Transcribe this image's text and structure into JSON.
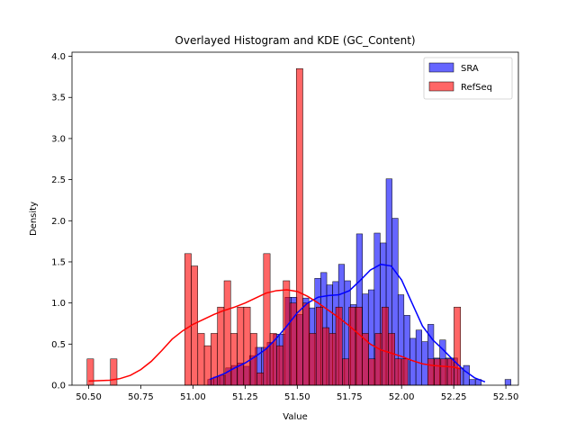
{
  "chart_data": {
    "type": "histogram",
    "title": "Overlayed Histogram and KDE (GC_Content)",
    "xlabel": "Value",
    "ylabel": "Density",
    "xlim": [
      50.42,
      52.56
    ],
    "ylim": [
      0,
      4.05
    ],
    "xticks": [
      "50.50",
      "50.75",
      "51.00",
      "51.25",
      "51.50",
      "51.75",
      "52.00",
      "52.25",
      "52.50"
    ],
    "yticks": [
      "0.0",
      "0.5",
      "1.0",
      "1.5",
      "2.0",
      "2.5",
      "3.0",
      "3.5",
      "4.0"
    ],
    "legend_position": "top-right",
    "grid": false,
    "series": [
      {
        "name": "SRA",
        "color": "#0000ff",
        "bin_width": 0.0285,
        "bins": [
          [
            51.085,
            0.07
          ],
          [
            51.114,
            0.1
          ],
          [
            51.142,
            0.12
          ],
          [
            51.171,
            0.21
          ],
          [
            51.199,
            0.24
          ],
          [
            51.228,
            0.27
          ],
          [
            51.256,
            0.23
          ],
          [
            51.285,
            0.36
          ],
          [
            51.313,
            0.46
          ],
          [
            51.342,
            0.46
          ],
          [
            51.37,
            0.52
          ],
          [
            51.399,
            0.62
          ],
          [
            51.427,
            0.62
          ],
          [
            51.456,
            1.07
          ],
          [
            51.484,
            1.07
          ],
          [
            51.513,
            0.86
          ],
          [
            51.541,
            1.06
          ],
          [
            51.57,
            0.94
          ],
          [
            51.598,
            1.3
          ],
          [
            51.627,
            1.37
          ],
          [
            51.655,
            1.22
          ],
          [
            51.684,
            1.26
          ],
          [
            51.712,
            1.47
          ],
          [
            51.741,
            1.27
          ],
          [
            51.769,
            0.98
          ],
          [
            51.798,
            1.84
          ],
          [
            51.826,
            1.11
          ],
          [
            51.855,
            1.16
          ],
          [
            51.883,
            1.85
          ],
          [
            51.912,
            1.73
          ],
          [
            51.94,
            2.51
          ],
          [
            51.969,
            2.03
          ],
          [
            51.997,
            1.1
          ],
          [
            52.026,
            0.85
          ],
          [
            52.054,
            0.57
          ],
          [
            52.083,
            0.67
          ],
          [
            52.111,
            0.53
          ],
          [
            52.14,
            0.74
          ],
          [
            52.168,
            0.33
          ],
          [
            52.197,
            0.55
          ],
          [
            52.225,
            0.33
          ],
          [
            52.254,
            0.33
          ],
          [
            52.282,
            0.21
          ],
          [
            52.311,
            0.24
          ],
          [
            52.339,
            0.07
          ],
          [
            52.368,
            0.07
          ],
          [
            52.51,
            0.07
          ]
        ],
        "kde_x": [
          51.08,
          51.15,
          51.2,
          51.25,
          51.3,
          51.35,
          51.4,
          51.45,
          51.5,
          51.55,
          51.6,
          51.65,
          51.7,
          51.75,
          51.8,
          51.85,
          51.9,
          51.95,
          52.0,
          52.05,
          52.1,
          52.15,
          52.2,
          52.25,
          52.3,
          52.35,
          52.4
        ],
        "kde_y": [
          0.07,
          0.14,
          0.21,
          0.27,
          0.35,
          0.44,
          0.57,
          0.72,
          0.88,
          1.0,
          1.07,
          1.09,
          1.1,
          1.15,
          1.27,
          1.4,
          1.47,
          1.45,
          1.28,
          1.0,
          0.72,
          0.55,
          0.43,
          0.3,
          0.18,
          0.09,
          0.04
        ]
      },
      {
        "name": "RefSeq",
        "color": "#ff0000",
        "bin_width": 0.0315,
        "bins": [
          [
            50.508,
            0.32
          ],
          [
            50.62,
            0.32
          ],
          [
            50.976,
            1.6
          ],
          [
            51.007,
            1.45
          ],
          [
            51.039,
            0.63
          ],
          [
            51.07,
            0.48
          ],
          [
            51.102,
            0.63
          ],
          [
            51.133,
            0.95
          ],
          [
            51.165,
            1.27
          ],
          [
            51.196,
            0.63
          ],
          [
            51.228,
            0.95
          ],
          [
            51.259,
            0.95
          ],
          [
            51.291,
            0.63
          ],
          [
            51.322,
            0.15
          ],
          [
            51.354,
            1.6
          ],
          [
            51.385,
            0.63
          ],
          [
            51.417,
            0.48
          ],
          [
            51.448,
            1.27
          ],
          [
            51.48,
            1.0
          ],
          [
            51.511,
            3.85
          ],
          [
            51.543,
            1.0
          ],
          [
            51.574,
            0.63
          ],
          [
            51.606,
            0.95
          ],
          [
            51.637,
            0.7
          ],
          [
            51.669,
            0.63
          ],
          [
            51.7,
            0.95
          ],
          [
            51.732,
            0.32
          ],
          [
            51.763,
            0.95
          ],
          [
            51.795,
            0.95
          ],
          [
            51.826,
            0.63
          ],
          [
            51.858,
            0.32
          ],
          [
            51.889,
            0.63
          ],
          [
            51.921,
            0.95
          ],
          [
            51.952,
            0.63
          ],
          [
            51.984,
            0.32
          ],
          [
            52.015,
            0.32
          ],
          [
            52.141,
            0.32
          ],
          [
            52.172,
            0.32
          ],
          [
            52.204,
            0.32
          ],
          [
            52.235,
            0.32
          ],
          [
            52.267,
            0.95
          ]
        ],
        "kde_x": [
          50.5,
          50.6,
          50.65,
          50.7,
          50.75,
          50.8,
          50.85,
          50.9,
          50.95,
          51.0,
          51.05,
          51.1,
          51.15,
          51.2,
          51.25,
          51.3,
          51.35,
          51.4,
          51.45,
          51.5,
          51.55,
          51.6,
          51.65,
          51.7,
          51.75,
          51.8,
          51.85,
          51.9,
          51.95,
          52.0,
          52.05,
          52.1,
          52.15,
          52.2,
          52.25,
          52.28
        ],
        "kde_y": [
          0.05,
          0.06,
          0.08,
          0.12,
          0.19,
          0.29,
          0.42,
          0.56,
          0.66,
          0.74,
          0.8,
          0.86,
          0.91,
          0.95,
          1.0,
          1.06,
          1.12,
          1.15,
          1.16,
          1.14,
          1.08,
          1.0,
          0.91,
          0.82,
          0.72,
          0.61,
          0.5,
          0.43,
          0.39,
          0.35,
          0.3,
          0.26,
          0.24,
          0.23,
          0.22,
          0.2
        ]
      }
    ]
  }
}
